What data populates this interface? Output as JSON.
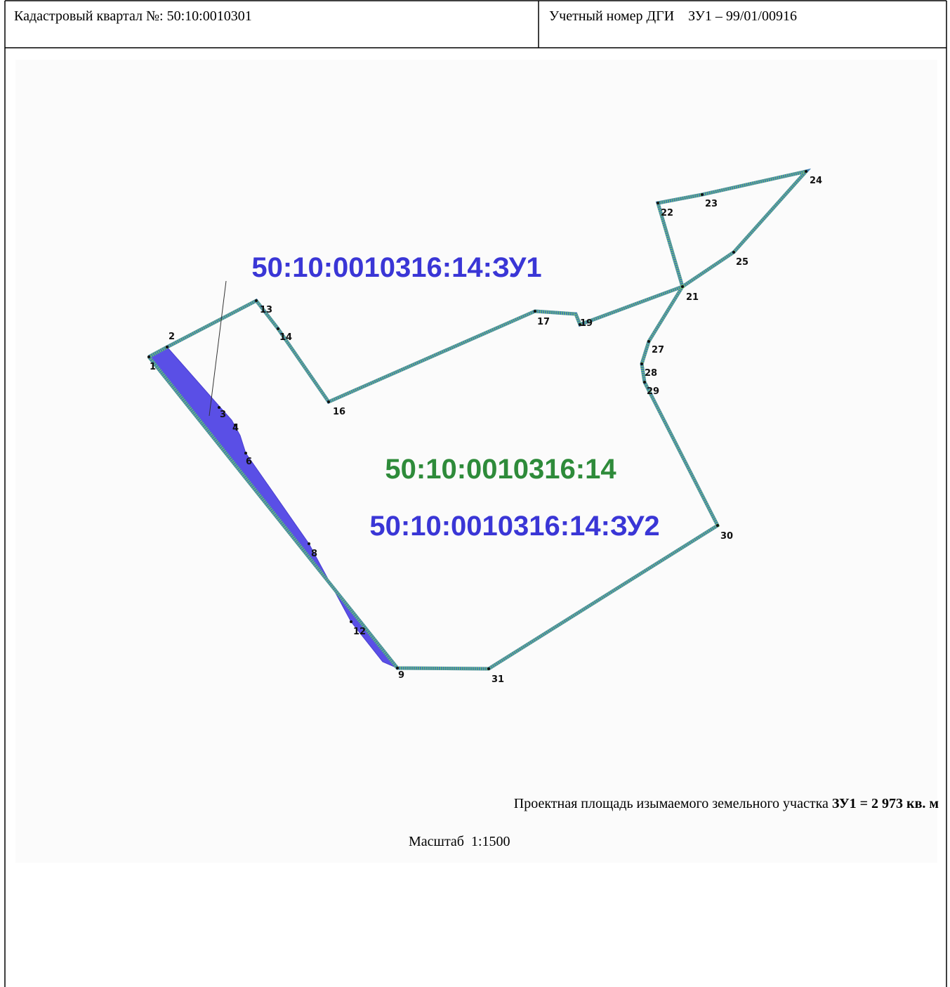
{
  "header": {
    "cadastral_quarter": "Кадастровый квартал №: 50:10:0010301",
    "dgi_number": "Учетный номер ДГИ    ЗУ1 – 99/01/00916"
  },
  "map": {
    "parcel_zu1": "50:10:0010316:14:ЗУ1",
    "parcel": "50:10:0010316:14",
    "parcel_zu2": "50:10:0010316:14:ЗУ2",
    "point_labels": [
      "1",
      "2",
      "13",
      "14",
      "16",
      "17",
      "19",
      "21",
      "22",
      "23",
      "24",
      "25",
      "27",
      "28",
      "29",
      "30",
      "31",
      "9",
      "12",
      "8",
      "6",
      "4",
      "3"
    ]
  },
  "footer": {
    "area_text": "Проектная площадь изымаемого земельного участка ",
    "area_value": "ЗУ1 = 2 973 кв. м",
    "scale": "Масштаб  1:1500"
  }
}
